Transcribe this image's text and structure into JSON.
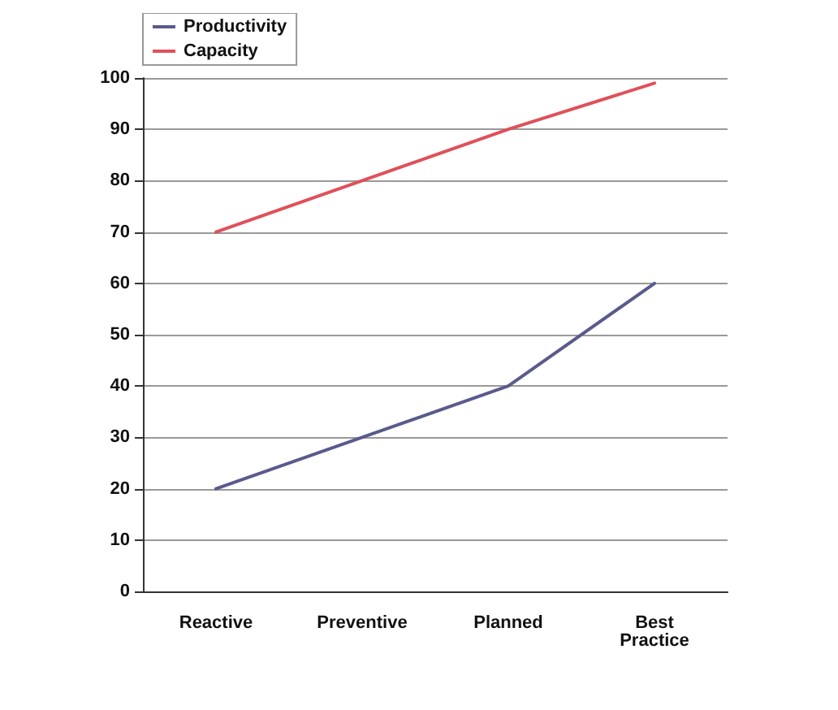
{
  "chart_data": {
    "type": "line",
    "categories": [
      "Reactive",
      "Preventive",
      "Planned",
      "Best\nPractice"
    ],
    "series": [
      {
        "name": "Productivity",
        "color": "#5a5a8c",
        "values": [
          20,
          30,
          40,
          60
        ]
      },
      {
        "name": "Capacity",
        "color": "#e0505a",
        "values": [
          70,
          80,
          90,
          99
        ]
      }
    ],
    "ylim": [
      0,
      100
    ],
    "yticks": [
      0,
      10,
      20,
      30,
      40,
      50,
      60,
      70,
      80,
      90,
      100
    ],
    "grid": "y",
    "legend": "top left",
    "marker": "none",
    "line_style": "solid"
  }
}
